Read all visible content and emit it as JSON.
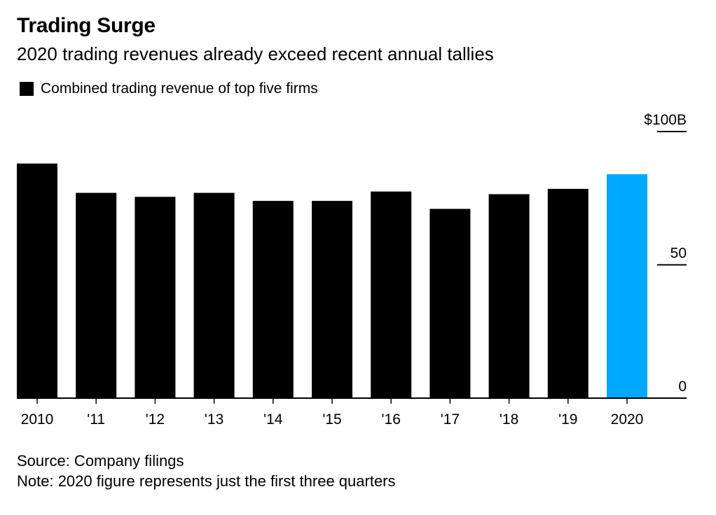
{
  "header": {
    "title": "Trading Surge",
    "subtitle": "2020 trading revenues already exceed recent annual tallies"
  },
  "legend": {
    "label": "Combined trading revenue of top five firms"
  },
  "footer": {
    "source": "Source: Company filings",
    "note": "Note: 2020 figure represents just the first three quarters"
  },
  "colors": {
    "bar": "#000000",
    "highlight": "#00a8ff"
  },
  "chart_data": {
    "type": "bar",
    "title": "Trading Surge",
    "subtitle": "2020 trading revenues already exceed recent annual tallies",
    "categories": [
      "2010",
      "'11",
      "'12",
      "'13",
      "'14",
      "'15",
      "'16",
      "'17",
      "'18",
      "'19",
      "2020"
    ],
    "series": [
      {
        "name": "Combined trading revenue of top five firms",
        "values": [
          88,
          77,
          75.5,
          77,
          74,
          74,
          77.5,
          71,
          76.5,
          78.5,
          84
        ]
      }
    ],
    "highlight_index": 10,
    "ylim": [
      0,
      100
    ],
    "yticks": [
      0,
      50,
      100
    ],
    "ytick_labels": [
      "0",
      "50",
      "$100B"
    ],
    "yaxis_position": "right",
    "grid": false,
    "legend_position": "top-left",
    "xlabel": "",
    "ylabel": ""
  }
}
